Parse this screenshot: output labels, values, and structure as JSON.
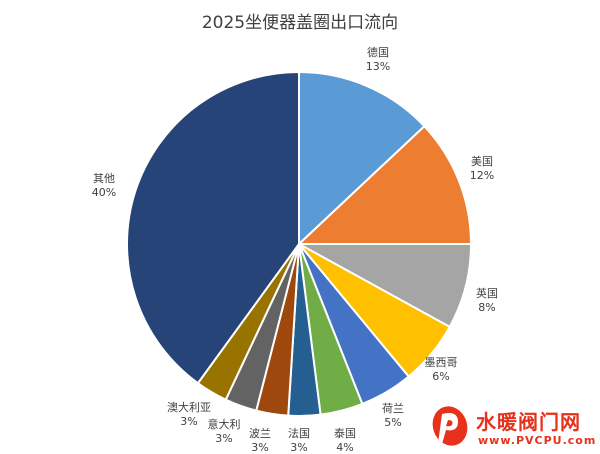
{
  "chart_data": {
    "type": "pie",
    "title": "2025坐便器盖圈出口流向",
    "slices": [
      {
        "label": "德国",
        "value": 13,
        "value_label": "13%",
        "color": "#5b9bd5"
      },
      {
        "label": "美国",
        "value": 12,
        "value_label": "12%",
        "color": "#ed7d31"
      },
      {
        "label": "英国",
        "value": 8,
        "value_label": "8%",
        "color": "#a5a5a5"
      },
      {
        "label": "墨西哥",
        "value": 6,
        "value_label": "6%",
        "color": "#ffc000"
      },
      {
        "label": "荷兰",
        "value": 5,
        "value_label": "5%",
        "color": "#4472c4"
      },
      {
        "label": "泰国",
        "value": 4,
        "value_label": "4%",
        "color": "#70ad47"
      },
      {
        "label": "法国",
        "value": 3,
        "value_label": "3%",
        "color": "#255e91"
      },
      {
        "label": "波兰",
        "value": 3,
        "value_label": "3%",
        "color": "#9e480e"
      },
      {
        "label": "意大利",
        "value": 3,
        "value_label": "3%",
        "color": "#636363"
      },
      {
        "label": "澳大利亚",
        "value": 3,
        "value_label": "3%",
        "color": "#997300"
      },
      {
        "label": "其他",
        "value": 40,
        "value_label": "40%",
        "color": "#264478"
      }
    ]
  },
  "watermark": {
    "name": "水暖阀门网",
    "url": "www.PVCPU.com"
  }
}
